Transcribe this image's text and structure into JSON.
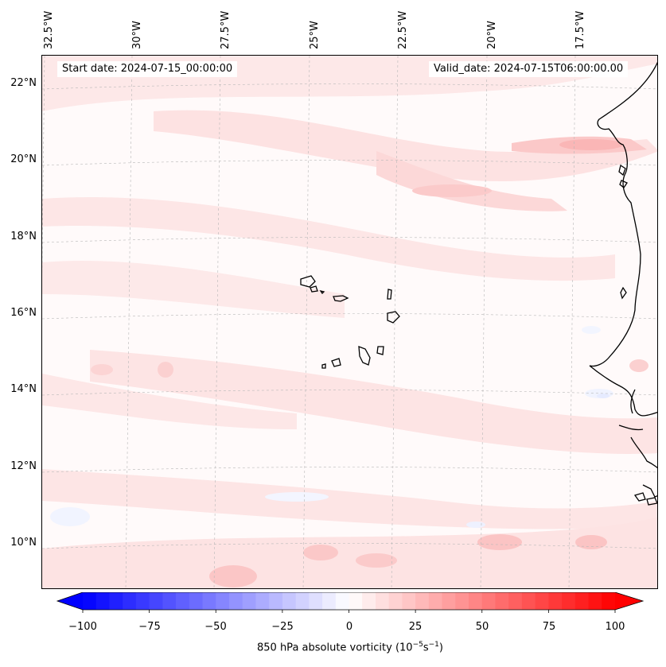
{
  "header": {
    "start_date": "Start date: 2024-07-15_00:00:00",
    "valid_date": "Valid_date: 2024-07-15T06:00:00.00"
  },
  "map": {
    "field": "850 hPa absolute vorticity",
    "lon_labels": [
      "32.5°W",
      "30°W",
      "27.5°W",
      "25°W",
      "22.5°W",
      "20°W",
      "17.5°W"
    ],
    "lat_labels": [
      "22°N",
      "20°N",
      "18°N",
      "16°N",
      "14°N",
      "12°N",
      "10°N"
    ],
    "extent": {
      "lon_min": -33.0,
      "lon_max": -15.5,
      "lat_min": 8.8,
      "lat_max": 22.8
    },
    "gridlines": true
  },
  "colorbar": {
    "label_prefix": "850 hPa absolute vorticity (10",
    "label_exp1": "−5",
    "label_mid": "s",
    "label_exp2": "−1",
    "label_suffix": ")",
    "ticks": [
      "−100",
      "−75",
      "−50",
      "−25",
      "0",
      "25",
      "50",
      "75",
      "100"
    ],
    "range": [
      -100,
      100
    ],
    "colormap": "bwr",
    "extend": "both"
  },
  "colors": {
    "coast": "#000000",
    "grid": "#b8b8b8",
    "negative": "#0000ff",
    "positive": "#ff0000",
    "neutral": "#ffffff"
  }
}
